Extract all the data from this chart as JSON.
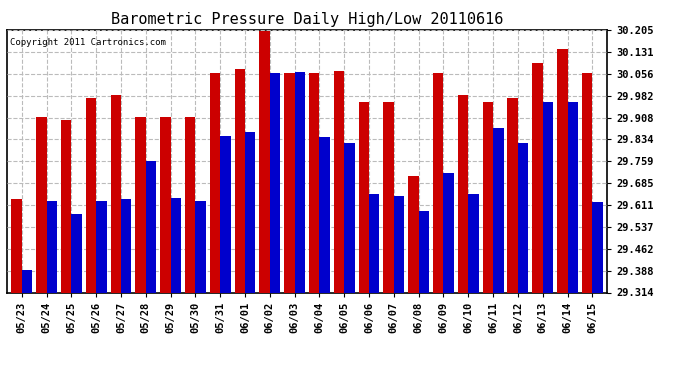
{
  "title": "Barometric Pressure Daily High/Low 20110616",
  "copyright": "Copyright 2011 Cartronics.com",
  "categories": [
    "05/23",
    "05/24",
    "05/25",
    "05/26",
    "05/27",
    "05/28",
    "05/29",
    "05/30",
    "05/31",
    "06/01",
    "06/02",
    "06/03",
    "06/04",
    "06/05",
    "06/06",
    "06/07",
    "06/08",
    "06/09",
    "06/10",
    "06/11",
    "06/12",
    "06/13",
    "06/14",
    "06/15"
  ],
  "highs": [
    29.63,
    29.91,
    29.9,
    29.975,
    29.985,
    29.908,
    29.908,
    29.908,
    30.058,
    30.072,
    30.2,
    30.06,
    30.058,
    30.065,
    29.96,
    29.96,
    29.71,
    30.058,
    29.985,
    29.96,
    29.975,
    30.092,
    30.14,
    30.058
  ],
  "lows": [
    29.39,
    29.625,
    29.58,
    29.625,
    29.63,
    29.76,
    29.635,
    29.625,
    29.845,
    29.858,
    30.06,
    30.062,
    29.842,
    29.82,
    29.65,
    29.643,
    29.59,
    29.718,
    29.648,
    29.872,
    29.822,
    29.962,
    29.962,
    29.622
  ],
  "high_color": "#cc0000",
  "low_color": "#0000cc",
  "bg_color": "#ffffff",
  "plot_bg_color": "#ffffff",
  "grid_color": "#bbbbbb",
  "ymin": 29.314,
  "ymax": 30.205,
  "yticks": [
    29.314,
    29.388,
    29.462,
    29.537,
    29.611,
    29.685,
    29.759,
    29.834,
    29.908,
    29.982,
    30.056,
    30.131,
    30.205
  ]
}
